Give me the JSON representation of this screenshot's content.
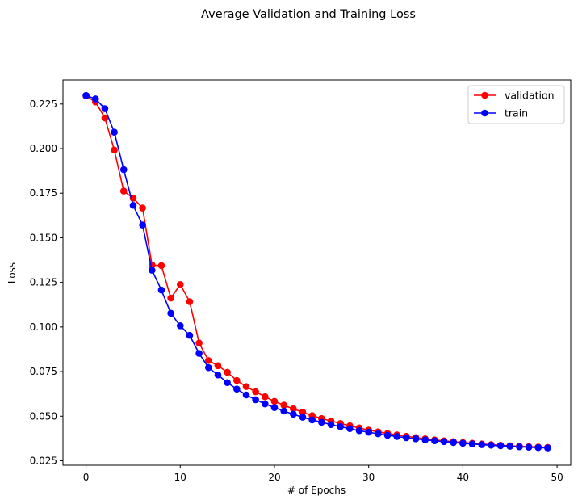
{
  "chart_data": {
    "type": "line",
    "title": "Average Validation and Training Loss",
    "xlabel": "# of Epochs",
    "ylabel": "Loss",
    "xlim": [
      -2.45,
      51.45
    ],
    "ylim": [
      0.0225,
      0.2385
    ],
    "xticks": [
      0,
      10,
      20,
      30,
      40,
      50
    ],
    "xtick_labels": [
      "0",
      "10",
      "20",
      "30",
      "40",
      "50"
    ],
    "yticks": [
      0.025,
      0.05,
      0.075,
      0.1,
      0.125,
      0.15,
      0.175,
      0.2,
      0.225
    ],
    "ytick_labels": [
      "0.025",
      "0.050",
      "0.075",
      "0.100",
      "0.125",
      "0.150",
      "0.175",
      "0.200",
      "0.225"
    ],
    "grid": false,
    "legend_position": "top-right",
    "x": [
      0,
      1,
      2,
      3,
      4,
      5,
      6,
      7,
      8,
      9,
      10,
      11,
      12,
      13,
      14,
      15,
      16,
      17,
      18,
      19,
      20,
      21,
      22,
      23,
      24,
      25,
      26,
      27,
      28,
      29,
      30,
      31,
      32,
      33,
      34,
      35,
      36,
      37,
      38,
      39,
      40,
      41,
      42,
      43,
      44,
      45,
      46,
      47,
      48,
      49
    ],
    "series": [
      {
        "name": "validation",
        "color": "#ff0000",
        "values": [
          0.2295,
          0.2262,
          0.2172,
          0.1992,
          0.1762,
          0.1722,
          0.1667,
          0.1347,
          0.1344,
          0.1162,
          0.1238,
          0.1142,
          0.091,
          0.0812,
          0.0783,
          0.0746,
          0.07,
          0.0666,
          0.0637,
          0.0609,
          0.0583,
          0.0562,
          0.0541,
          0.0522,
          0.0503,
          0.0487,
          0.0473,
          0.0459,
          0.0446,
          0.0434,
          0.0422,
          0.0412,
          0.0403,
          0.0395,
          0.0387,
          0.038,
          0.0373,
          0.0367,
          0.0362,
          0.0357,
          0.0352,
          0.0348,
          0.0344,
          0.034,
          0.0337,
          0.0334,
          0.0331,
          0.0329,
          0.0327,
          0.0325
        ]
      },
      {
        "name": "train",
        "color": "#0000ff",
        "values": [
          0.2298,
          0.2279,
          0.2224,
          0.2092,
          0.1882,
          0.1682,
          0.1572,
          0.1318,
          0.1207,
          0.1077,
          0.1007,
          0.0953,
          0.0852,
          0.0772,
          0.0731,
          0.0688,
          0.0652,
          0.0619,
          0.0592,
          0.0569,
          0.0548,
          0.0529,
          0.0511,
          0.0494,
          0.0479,
          0.0466,
          0.0453,
          0.0441,
          0.043,
          0.0419,
          0.041,
          0.0401,
          0.0393,
          0.0386,
          0.0379,
          0.0373,
          0.0367,
          0.0362,
          0.0357,
          0.0352,
          0.0348,
          0.0344,
          0.034,
          0.0337,
          0.0334,
          0.0331,
          0.0328,
          0.0326,
          0.0324,
          0.0322
        ]
      }
    ]
  }
}
